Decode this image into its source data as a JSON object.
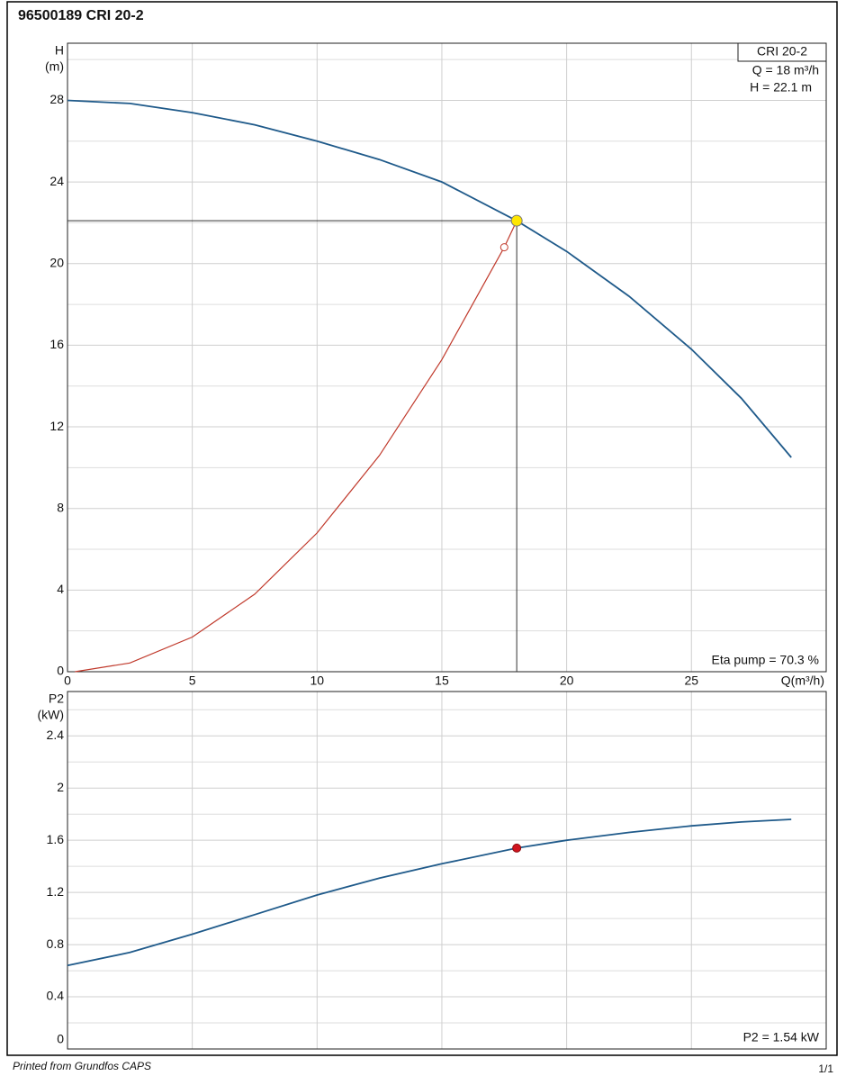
{
  "header": {
    "title": "96500189 CRI 20-2"
  },
  "footer": {
    "left": "Printed from Grundfos CAPS",
    "right": "1/1"
  },
  "chart_data": [
    {
      "type": "line",
      "ylabel": "H",
      "yunit": "(m)",
      "xlabel": "Q(m³/h)",
      "legend_title": "CRI 20-2",
      "annotations": [
        "Q = 18 m³/h",
        "H = 22.1 m",
        "Eta pump = 70.3 %"
      ],
      "xlim": [
        0,
        30.4
      ],
      "xticks": [
        0,
        5,
        10,
        15,
        20,
        25
      ],
      "show_xtick_labels": true,
      "ylim": [
        0,
        30.8
      ],
      "yticks": [
        0,
        4,
        8,
        12,
        16,
        20,
        24,
        28
      ],
      "minor_yticks": [
        2,
        6,
        10,
        14,
        18,
        22,
        26,
        30
      ],
      "grid": true,
      "series": [
        {
          "color": "#1f5a8a",
          "x": [
            0,
            2.5,
            5,
            7.5,
            10,
            12.5,
            15,
            18,
            20,
            22.5,
            25,
            27,
            29
          ],
          "values": [
            28,
            27.85,
            27.4,
            26.8,
            26.0,
            25.1,
            24.0,
            22.1,
            20.6,
            18.4,
            15.8,
            13.4,
            10.5
          ]
        },
        {
          "color": "#c0392b",
          "x": [
            0.3,
            2.5,
            5,
            7.5,
            10,
            12.5,
            15,
            17.5
          ],
          "values": [
            0,
            0.43,
            1.7,
            3.8,
            6.8,
            10.6,
            15.3,
            20.8
          ]
        }
      ],
      "duty_point": {
        "x": 18,
        "y": 22.1,
        "color": "#ffe600"
      }
    },
    {
      "type": "line",
      "ylabel": "P2",
      "yunit": "(kW)",
      "annotations": [
        "P2 = 1.54 kW"
      ],
      "xlim": [
        0,
        30.4
      ],
      "xticks": [
        0,
        5,
        10,
        15,
        20,
        25
      ],
      "show_xtick_labels": false,
      "ylim": [
        0,
        2.74
      ],
      "yticks": [
        0,
        0.4,
        0.8,
        1.2,
        1.6,
        2,
        2.4
      ],
      "minor_yticks": [
        0.2,
        0.6,
        1.0,
        1.4,
        1.8,
        2.2,
        2.6
      ],
      "grid": true,
      "series": [
        {
          "color": "#1f5a8a",
          "x": [
            0,
            2.5,
            5,
            7.5,
            10,
            12.5,
            15,
            18,
            20,
            22.5,
            25,
            27,
            29
          ],
          "values": [
            0.64,
            0.74,
            0.88,
            1.03,
            1.18,
            1.31,
            1.42,
            1.54,
            1.6,
            1.66,
            1.71,
            1.74,
            1.76
          ]
        }
      ],
      "duty_point": {
        "x": 18,
        "y": 1.54,
        "color": "#d0141e"
      }
    }
  ]
}
